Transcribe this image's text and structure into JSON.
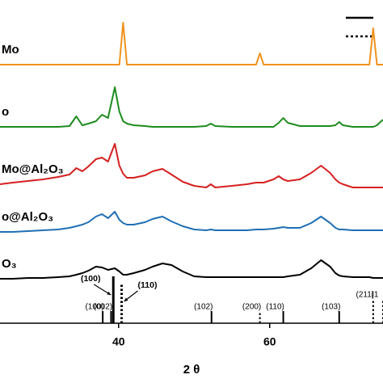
{
  "chart_data": {
    "type": "line",
    "x_label": "2 θ",
    "xlim": [
      24.3,
      75
    ],
    "ylim": [
      0,
      400
    ],
    "xticks": [
      40,
      60
    ],
    "x": [
      24.3,
      26,
      28,
      30,
      32,
      33.5,
      34.4,
      35.2,
      36,
      37,
      37.8,
      38.6,
      39.5,
      40.1,
      40.6,
      41.1,
      42,
      43.5,
      44.5,
      45.8,
      47,
      48.5,
      50,
      51.6,
      52.2,
      52.8,
      55,
      57,
      58.2,
      58.7,
      59.2,
      60.5,
      61.2,
      61.8,
      62.4,
      64,
      65.5,
      66.8,
      68,
      68.7,
      69.2,
      69.7,
      71,
      72.5,
      73.2,
      73.7,
      74.2,
      75
    ],
    "series": [
      {
        "name": "Mo",
        "color": "#f0921e",
        "values": [
          320,
          320,
          320,
          320,
          320,
          320,
          320,
          320,
          320,
          320,
          320,
          320,
          320,
          320,
          372,
          320,
          320,
          320,
          320,
          320,
          320,
          320,
          320,
          320,
          320,
          320,
          320,
          320,
          320,
          334,
          320,
          320,
          320,
          320,
          320,
          320,
          320,
          320,
          320,
          320,
          320,
          320,
          320,
          320,
          320,
          365,
          320,
          320
        ]
      },
      {
        "name": "o",
        "color": "#1e8c1e",
        "values": [
          243,
          243,
          243,
          243,
          243,
          244,
          256,
          245,
          247,
          250,
          258,
          254,
          292,
          262,
          250,
          247,
          245,
          244,
          243,
          243,
          243,
          243,
          243,
          244,
          247,
          244,
          243,
          243,
          243,
          243,
          243,
          243,
          248,
          254,
          248,
          244,
          244,
          244,
          244,
          245,
          249,
          245,
          243,
          243,
          243,
          243,
          245,
          252
        ]
      },
      {
        "name": "Mo@Al₂O₃",
        "color": "#d62020",
        "values": [
          172,
          174,
          176,
          178,
          181,
          184,
          192,
          188,
          194,
          203,
          205,
          200,
          222,
          195,
          185,
          180,
          180,
          183,
          188,
          191,
          184,
          175,
          170,
          168,
          172,
          168,
          170,
          172,
          174,
          174,
          174,
          178,
          182,
          178,
          176,
          178,
          186,
          195,
          186,
          178,
          174,
          172,
          168,
          168,
          168,
          168,
          168,
          168
        ]
      },
      {
        "name": "o@Al₂O₃",
        "color": "#1f6fb4",
        "values": [
          113,
          113,
          114,
          115,
          116,
          118,
          120,
          122,
          125,
          132,
          135,
          130,
          138,
          128,
          124,
          122,
          122,
          125,
          129,
          132,
          126,
          120,
          116,
          115,
          116,
          115,
          115,
          115,
          116,
          116,
          116,
          117,
          118,
          119,
          118,
          118,
          124,
          132,
          124,
          118,
          116,
          116,
          115,
          115,
          115,
          115,
          115,
          115
        ]
      },
      {
        "name": "O₃",
        "color": "#000000",
        "values": [
          55,
          55,
          56,
          56,
          57,
          58,
          60,
          62,
          65,
          70,
          69,
          66,
          68,
          64,
          60,
          60,
          62,
          66,
          70,
          74,
          72,
          64,
          58,
          57,
          57,
          57,
          57,
          57,
          57,
          57,
          57,
          57,
          57,
          57,
          58,
          60,
          68,
          78,
          70,
          62,
          59,
          58,
          57,
          57,
          57,
          56,
          56,
          56
        ]
      }
    ],
    "references": [
      {
        "label": "(100)",
        "x": 39.3,
        "height": 58,
        "style": "solid"
      },
      {
        "label": "(110)",
        "x": 40.4,
        "height": 50,
        "style": "dotted"
      }
    ],
    "sticks": [
      {
        "label": "(100)",
        "x": 37.9,
        "height": 15,
        "style": "solid"
      },
      {
        "label": "(002)",
        "x": 39.0,
        "height": 15,
        "style": "solid"
      },
      {
        "label": "(102)",
        "x": 52.3,
        "height": 15,
        "style": "solid"
      },
      {
        "label": "(200)",
        "x": 58.7,
        "height": 15,
        "style": "dotted"
      },
      {
        "label": "(110)",
        "x": 61.8,
        "height": 15,
        "style": "solid"
      },
      {
        "label": "(103)",
        "x": 69.2,
        "height": 15,
        "style": "solid"
      },
      {
        "label": "(211)",
        "x": 73.7,
        "height": 30,
        "style": "dotted"
      },
      {
        "label": "(1",
        "x": 75.0,
        "height": 30,
        "style": "dotted"
      }
    ]
  }
}
